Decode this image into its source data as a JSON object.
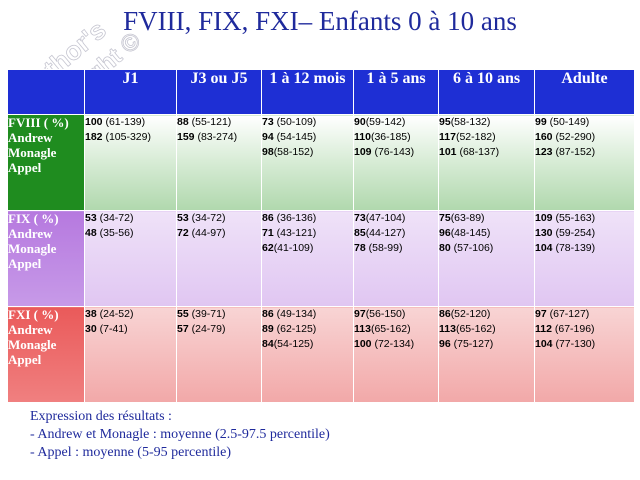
{
  "title": "FVIII, FIX, FXI– Enfants 0 à 10 ans",
  "watermark": {
    "line1": "Author's",
    "line2": "copyright ©"
  },
  "headers": [
    "J1",
    "J3 ou J5",
    "1 à 12 mois",
    "1 à 5 ans",
    "6 à 10 ans",
    "Adulte"
  ],
  "rows": [
    {
      "label": [
        "FVIII ( %)",
        "Andrew",
        "Monagle",
        "Appel"
      ],
      "cells": [
        [
          [
            "100",
            " (61-139)"
          ],
          [
            "182",
            " (105-329)"
          ]
        ],
        [
          [
            "88",
            " (55-121)"
          ],
          [
            "159",
            " (83-274)"
          ]
        ],
        [
          [
            "73",
            " (50-109)"
          ],
          [
            "94",
            " (54-145)"
          ],
          [
            "98",
            "(58-152)"
          ]
        ],
        [
          [
            "90",
            "(59-142)"
          ],
          [
            "110",
            "(36-185)"
          ],
          [
            "109",
            " (76-143)"
          ]
        ],
        [
          [
            "95",
            "(58-132)"
          ],
          [
            "117",
            "(52-182)"
          ],
          [
            "101",
            " (68-137)"
          ]
        ],
        [
          [
            "99",
            " (50-149)"
          ],
          [
            "160",
            " (52-290)"
          ],
          [
            "123",
            " (87-152)"
          ]
        ]
      ]
    },
    {
      "label": [
        " FIX ( %)",
        "Andrew",
        "Monagle",
        "Appel"
      ],
      "cells": [
        [
          [
            "53",
            " (34-72)"
          ],
          [
            "48",
            " (35-56)"
          ]
        ],
        [
          [
            "53",
            " (34-72)"
          ],
          [
            "72",
            " (44-97)"
          ]
        ],
        [
          [
            "86",
            " (36-136)"
          ],
          [
            "71",
            " (43-121)"
          ],
          [
            "62",
            "(41-109)"
          ]
        ],
        [
          [
            "73",
            "(47-104)"
          ],
          [
            "85",
            "(44-127)"
          ],
          [
            "78",
            " (58-99)"
          ]
        ],
        [
          [
            "75",
            "(63-89)"
          ],
          [
            "96",
            "(48-145)"
          ],
          [
            "80",
            " (57-106)"
          ]
        ],
        [
          [
            "109",
            " (55-163)"
          ],
          [
            "130",
            " (59-254)"
          ],
          [
            "104",
            " (78-139)"
          ]
        ]
      ]
    },
    {
      "label": [
        " FXI ( %)",
        "Andrew",
        "Monagle",
        "Appel"
      ],
      "cells": [
        [
          [
            "38",
            " (24-52)"
          ],
          [
            "30",
            " (7-41)"
          ]
        ],
        [
          [
            "55",
            " (39-71)"
          ],
          [
            "57",
            " (24-79)"
          ]
        ],
        [
          [
            "86",
            " (49-134)"
          ],
          [
            "89",
            " (62-125)"
          ],
          [
            "84",
            "(54-125)"
          ]
        ],
        [
          [
            "97",
            "(56-150)"
          ],
          [
            "113",
            "(65-162)"
          ],
          [
            "100",
            " (72-134)"
          ]
        ],
        [
          [
            "86",
            "(52-120)"
          ],
          [
            "113",
            "(65-162)"
          ],
          [
            "96",
            " (75-127)"
          ]
        ],
        [
          [
            "97",
            " (67-127)"
          ],
          [
            "112",
            " (67-196)"
          ],
          [
            "104",
            " (77-130)"
          ]
        ]
      ]
    }
  ],
  "notes": [
    "Expression des résultats :",
    "- Andrew et Monagle : moyenne (2.5-97.5 percentile)",
    "- Appel : moyenne (5-95 percentile)"
  ]
}
